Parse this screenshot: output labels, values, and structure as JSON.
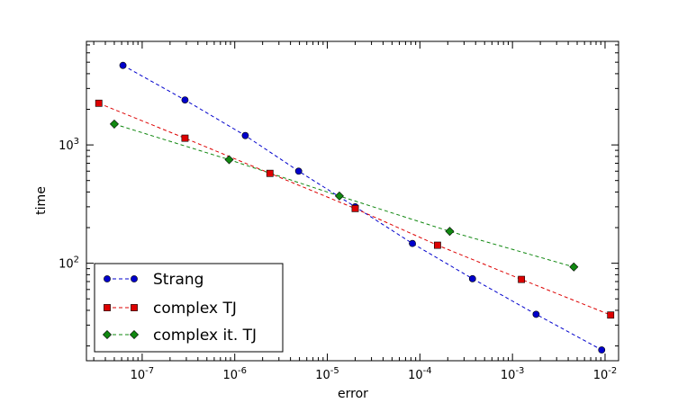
{
  "chart_data": {
    "type": "line",
    "title": "",
    "xlabel": "error",
    "ylabel": "time",
    "xscale": "log",
    "yscale": "log",
    "xlim": [
      2.5e-08,
      0.014
    ],
    "ylim": [
      15,
      7500
    ],
    "xticks": [
      {
        "value": 1e-07,
        "base": "10",
        "exp": "-7"
      },
      {
        "value": 1e-06,
        "base": "10",
        "exp": "-6"
      },
      {
        "value": 1e-05,
        "base": "10",
        "exp": "-5"
      },
      {
        "value": 0.0001,
        "base": "10",
        "exp": "-4"
      },
      {
        "value": 0.001,
        "base": "10",
        "exp": "-3"
      },
      {
        "value": 0.01,
        "base": "10",
        "exp": "-2"
      }
    ],
    "yticks": [
      {
        "value": 100,
        "base": "10",
        "exp": "2"
      },
      {
        "value": 1000,
        "base": "10",
        "exp": "3"
      }
    ],
    "legend_position": "lower-left",
    "series": [
      {
        "name": "Strang",
        "color": "#0000cc",
        "marker": "circle",
        "x": [
          6.2e-08,
          2.9e-07,
          1.3e-06,
          4.9e-06,
          2e-05,
          8.3e-05,
          0.00037,
          0.0018,
          0.0092
        ],
        "y": [
          4700,
          2400,
          1200,
          600,
          300,
          147,
          74,
          37,
          18.5
        ]
      },
      {
        "name": "complex TJ",
        "color": "#dd0000",
        "marker": "square",
        "x": [
          3.4e-08,
          2.9e-07,
          2.4e-06,
          2e-05,
          0.000155,
          0.00125,
          0.0115
        ],
        "y": [
          2250,
          1140,
          575,
          290,
          142,
          73,
          36.5
        ]
      },
      {
        "name": "complex it. TJ",
        "color": "#118811",
        "marker": "diamond",
        "x": [
          5e-08,
          8.7e-07,
          1.35e-05,
          0.00021,
          0.0046
        ],
        "y": [
          1500,
          750,
          370,
          186,
          93
        ]
      }
    ]
  }
}
